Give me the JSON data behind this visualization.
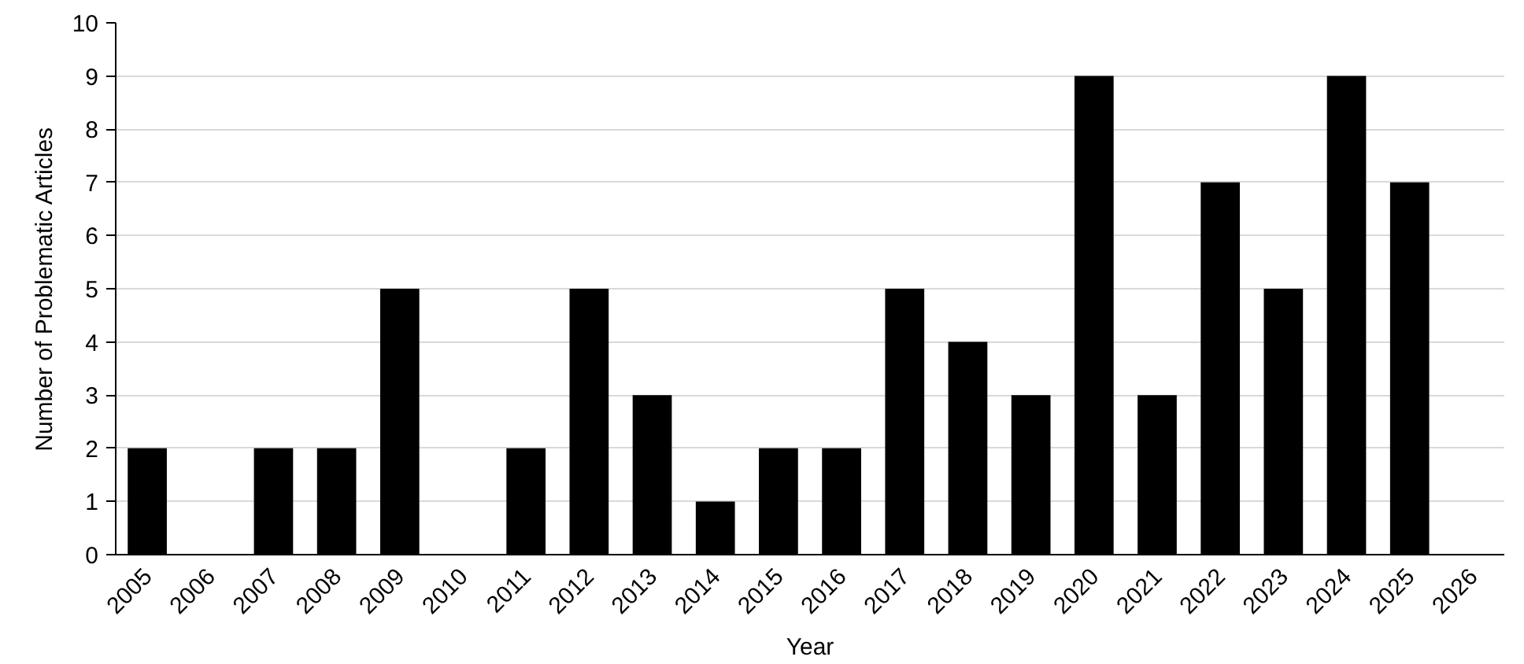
{
  "chart_data": {
    "type": "bar",
    "xlabel": "Year",
    "ylabel": "Number of Problematic Articles",
    "categories": [
      "2005",
      "2006",
      "2007",
      "2008",
      "2009",
      "2010",
      "2011",
      "2012",
      "2013",
      "2014",
      "2015",
      "2016",
      "2017",
      "2018",
      "2019",
      "2020",
      "2021",
      "2022",
      "2023",
      "2024",
      "2025",
      "2026"
    ],
    "values": [
      2,
      0,
      2,
      2,
      5,
      0,
      2,
      5,
      3,
      1,
      2,
      2,
      5,
      4,
      3,
      9,
      3,
      7,
      5,
      9,
      7,
      0
    ],
    "color": "#000000",
    "ylim": [
      0,
      10
    ],
    "yticks": [
      0,
      1,
      2,
      3,
      4,
      5,
      6,
      7,
      8,
      9,
      10
    ],
    "grid": "y"
  }
}
